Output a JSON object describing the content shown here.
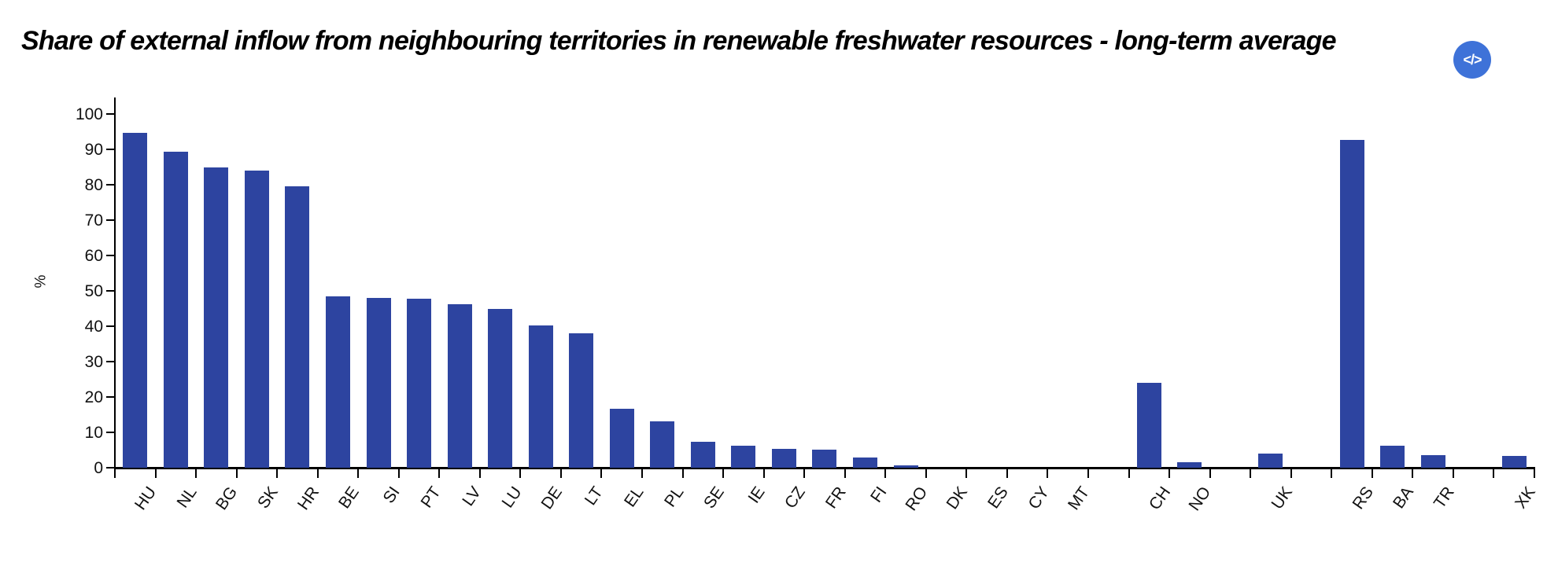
{
  "header": {
    "embed_button_label": "</>"
  },
  "colors": {
    "bar": "#2d44a0",
    "embed_button_bg": "#3e72d8",
    "axis": "#000000"
  },
  "chart_data": {
    "type": "bar",
    "title": "Share of external inflow from neighbouring territories in renewable freshwater resources - long-term average",
    "xlabel": "",
    "ylabel": "%",
    "ylim": [
      0,
      100
    ],
    "yticks": [
      0,
      10,
      20,
      30,
      40,
      50,
      60,
      70,
      80,
      90,
      100
    ],
    "grid": false,
    "legend": false,
    "categories": [
      "HU",
      "NL",
      "BG",
      "SK",
      "HR",
      "BE",
      "SI",
      "PT",
      "LV",
      "LU",
      "DE",
      "LT",
      "EL",
      "PL",
      "SE",
      "IE",
      "CZ",
      "FR",
      "FI",
      "RO",
      "DK",
      "ES",
      "CY",
      "MT",
      "",
      "CH",
      "NO",
      "",
      "UK",
      "",
      "RS",
      "BA",
      "TR",
      "",
      "XK"
    ],
    "values": [
      94.7,
      89.4,
      84.8,
      84.0,
      79.6,
      48.4,
      48.1,
      47.7,
      46.3,
      44.8,
      40.2,
      37.9,
      16.7,
      13.1,
      7.4,
      6.3,
      5.4,
      5.2,
      2.8,
      0.7,
      0,
      0,
      0,
      0,
      null,
      23.9,
      1.6,
      null,
      3.9,
      null,
      92.6,
      6.2,
      3.6,
      null,
      3.4
    ]
  }
}
